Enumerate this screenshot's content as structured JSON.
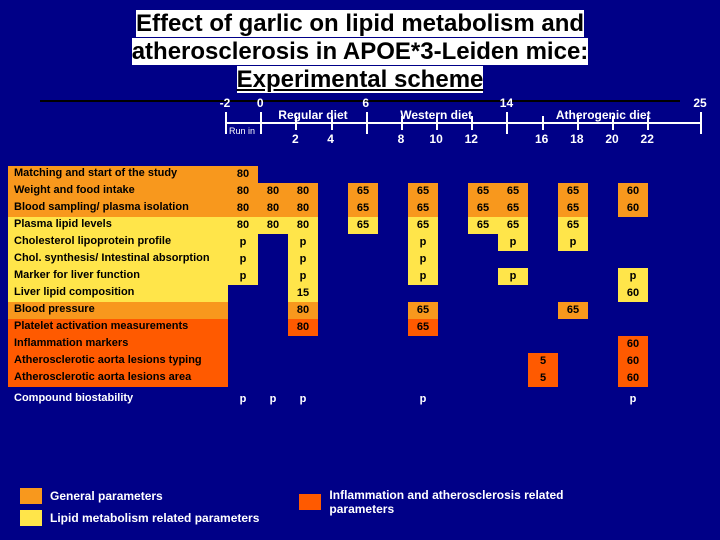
{
  "title": {
    "line1": "Effect of garlic on lipid metabolism and",
    "line2": "atherosclerosis in APOE*3-Leiden mice:",
    "line3": "Experimental scheme"
  },
  "timeline": {
    "majors": [
      {
        "x": -2,
        "label": "-2"
      },
      {
        "x": 0,
        "label": "0"
      },
      {
        "x": 6,
        "label": "6"
      },
      {
        "x": 14,
        "label": "14"
      },
      {
        "x": 25,
        "label": "25"
      }
    ],
    "minors_top": [
      {
        "x": 2,
        "label": "2"
      },
      {
        "x": 4,
        "label": "4"
      },
      {
        "x": 8,
        "label": "8"
      },
      {
        "x": 10,
        "label": "10"
      },
      {
        "x": 12,
        "label": "12"
      },
      {
        "x": 16,
        "label": "16"
      },
      {
        "x": 18,
        "label": "18"
      },
      {
        "x": 20,
        "label": "20"
      },
      {
        "x": 22,
        "label": "22"
      }
    ],
    "runin": "Run in",
    "segments": [
      {
        "label": "Regular diet",
        "from": 0,
        "to": 6
      },
      {
        "label": "Western diet",
        "from": 6,
        "to": 14
      },
      {
        "label": "Atherogenic diet",
        "from": 14,
        "to": 25
      }
    ],
    "xmin": -2,
    "xmax": 25
  },
  "colors": {
    "general": "#f8981d",
    "lipid": "#ffe54a",
    "inflam": "#ff5a00",
    "bg": "#000087",
    "text": "#ffffff",
    "title_bg": "#ffffff",
    "title_fg": "#000000"
  },
  "cols": [
    0,
    2,
    4,
    6,
    8,
    10,
    12,
    14,
    16,
    18,
    20,
    22,
    24,
    25
  ],
  "rows": [
    {
      "label": "Matching and start of the study",
      "lab_c": "gen",
      "cells": {
        "0": {
          "v": "80",
          "c": "gen"
        }
      }
    },
    {
      "label": "Weight and food intake",
      "lab_c": "gen",
      "cells": {
        "0": {
          "v": "80",
          "c": "gen"
        },
        "2": {
          "v": "80",
          "c": "gen"
        },
        "4": {
          "v": "80",
          "c": "gen"
        },
        "8": {
          "v": "65",
          "c": "gen"
        },
        "12": {
          "v": "65",
          "c": "gen"
        },
        "16": {
          "v": "65",
          "c": "gen"
        },
        "18": {
          "v": "65",
          "c": "gen"
        },
        "22": {
          "v": "65",
          "c": "gen"
        },
        "25": {
          "v": "60",
          "c": "gen"
        }
      }
    },
    {
      "label": "Blood sampling/ plasma isolation",
      "lab_c": "gen",
      "cells": {
        "0": {
          "v": "80",
          "c": "gen"
        },
        "2": {
          "v": "80",
          "c": "gen"
        },
        "4": {
          "v": "80",
          "c": "gen"
        },
        "8": {
          "v": "65",
          "c": "gen"
        },
        "12": {
          "v": "65",
          "c": "gen"
        },
        "16": {
          "v": "65",
          "c": "gen"
        },
        "18": {
          "v": "65",
          "c": "gen"
        },
        "22": {
          "v": "65",
          "c": "gen"
        },
        "25": {
          "v": "60",
          "c": "gen"
        }
      }
    },
    {
      "label": "Plasma lipid levels",
      "lab_c": "lip",
      "cells": {
        "0": {
          "v": "80",
          "c": "lip"
        },
        "2": {
          "v": "80",
          "c": "lip"
        },
        "4": {
          "v": "80",
          "c": "lip"
        },
        "8": {
          "v": "65",
          "c": "lip"
        },
        "12": {
          "v": "65",
          "c": "lip"
        },
        "16": {
          "v": "65",
          "c": "lip"
        },
        "18": {
          "v": "65",
          "c": "lip"
        },
        "22": {
          "v": "65",
          "c": "lip"
        }
      }
    },
    {
      "label": "Cholesterol lipoprotein profile",
      "lab_c": "lip",
      "cells": {
        "0": {
          "v": "p",
          "c": "lip"
        },
        "4": {
          "v": "p",
          "c": "lip"
        },
        "12": {
          "v": "p",
          "c": "lip"
        },
        "18": {
          "v": "p",
          "c": "lip"
        },
        "22": {
          "v": "p",
          "c": "lip"
        }
      }
    },
    {
      "label": "Chol. synthesis/ Intestinal absorption",
      "lab_c": "lip",
      "cells": {
        "0": {
          "v": "p",
          "c": "lip"
        },
        "4": {
          "v": "p",
          "c": "lip"
        },
        "12": {
          "v": "p",
          "c": "lip"
        }
      }
    },
    {
      "label": "Marker for liver function",
      "lab_c": "lip",
      "cells": {
        "0": {
          "v": "p",
          "c": "lip"
        },
        "4": {
          "v": "p",
          "c": "lip"
        },
        "12": {
          "v": "p",
          "c": "lip"
        },
        "18": {
          "v": "p",
          "c": "lip"
        },
        "25": {
          "v": "p",
          "c": "lip"
        }
      }
    },
    {
      "label": "Liver lipid composition",
      "lab_c": "lip",
      "cells": {
        "4": {
          "v": "15",
          "c": "lip"
        },
        "25": {
          "v": "60",
          "c": "lip"
        }
      }
    },
    {
      "label": "Blood pressure",
      "lab_c": "gen",
      "cells": {
        "4": {
          "v": "80",
          "c": "gen"
        },
        "12": {
          "v": "65",
          "c": "gen"
        },
        "22": {
          "v": "65",
          "c": "gen"
        }
      }
    },
    {
      "label": "Platelet activation measurements",
      "lab_c": "inf",
      "cells": {
        "4": {
          "v": "80",
          "c": "inf"
        },
        "12": {
          "v": "65",
          "c": "inf"
        }
      }
    },
    {
      "label": "Inflammation markers",
      "lab_c": "inf",
      "cells": {
        "25": {
          "v": "60",
          "c": "inf"
        }
      }
    },
    {
      "label": "Atherosclerotic aorta lesions typing",
      "lab_c": "inf",
      "cells": {
        "20": {
          "v": "5",
          "c": "inf"
        },
        "25": {
          "v": "60",
          "c": "inf"
        }
      }
    },
    {
      "label": "Atherosclerotic aorta lesions area",
      "lab_c": "inf",
      "cells": {
        "20": {
          "v": "5",
          "c": "inf"
        },
        "25": {
          "v": "60",
          "c": "inf"
        }
      }
    },
    {
      "label": "Compound biostability",
      "lab_c": "",
      "cells": {
        "0": {
          "v": "p",
          "c": ""
        },
        "2": {
          "v": "p",
          "c": ""
        },
        "4": {
          "v": "p",
          "c": ""
        },
        "12": {
          "v": "p",
          "c": ""
        },
        "25": {
          "v": "p",
          "c": ""
        }
      }
    }
  ],
  "legend": {
    "general": "General parameters",
    "lipid": "Lipid metabolism related parameters",
    "inflam": "Inflammation and atherosclerosis related parameters"
  }
}
